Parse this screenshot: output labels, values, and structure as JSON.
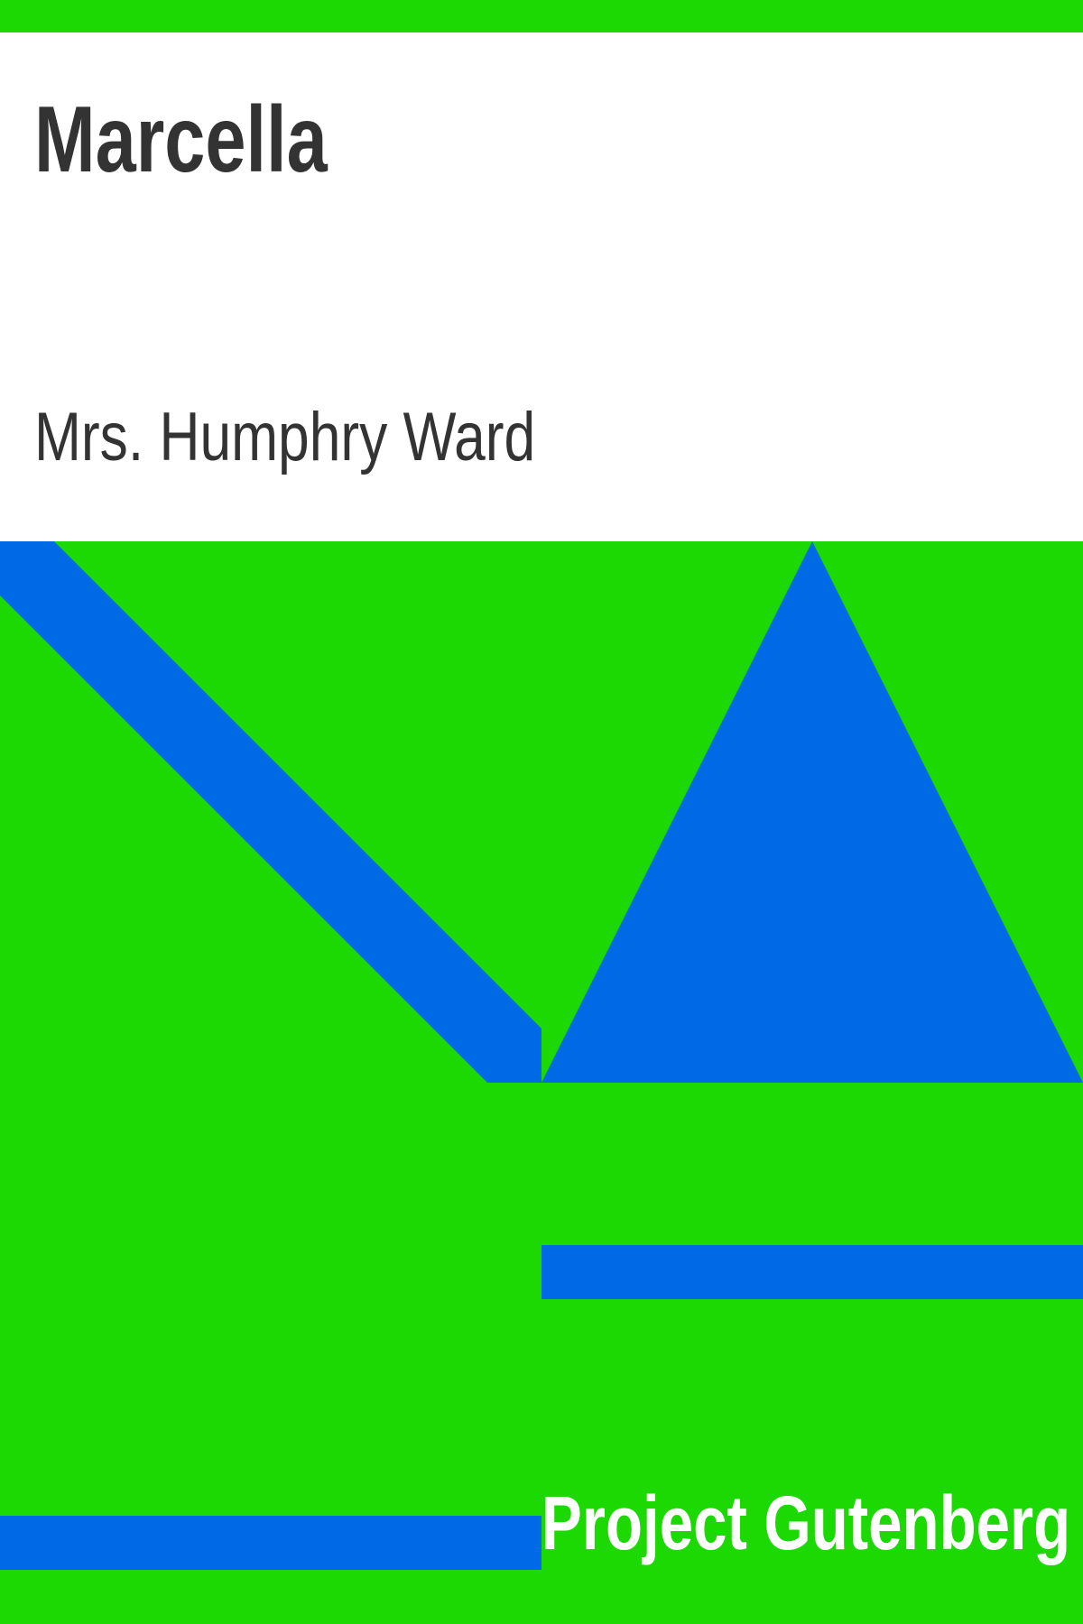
{
  "cover": {
    "title": "Marcella",
    "author": "Mrs. Humphry Ward",
    "publisher": "Project Gutenberg"
  },
  "colors": {
    "background": "#1cd904",
    "header": "#ffffff",
    "shapes": "#0069e6",
    "text_dark": "#333333",
    "text_light": "#ffffff"
  }
}
